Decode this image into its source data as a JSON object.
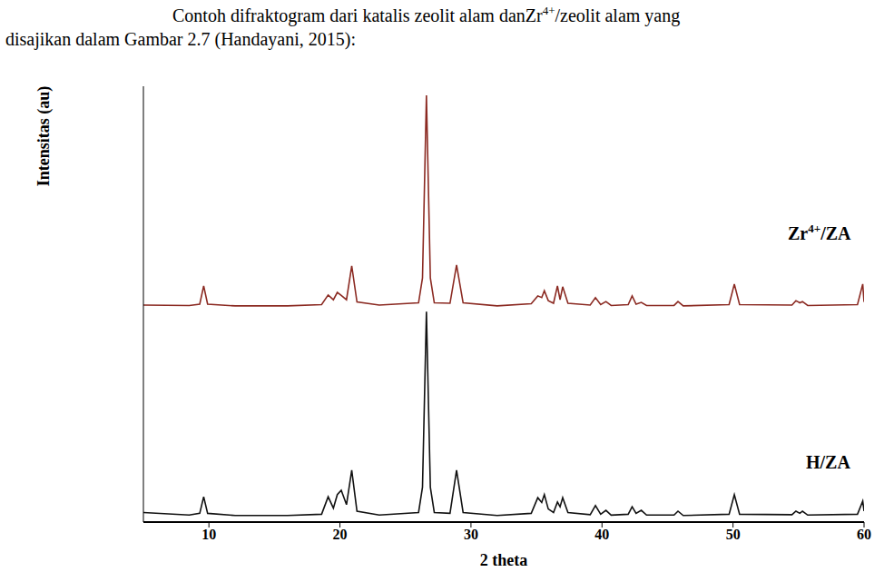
{
  "caption": [
    "Contoh difraktogram dari katalis zeolit alam danZr4+/zeolit alam yang",
    "disajikan dalam Gambar 2.7 (Handayani, 2015):"
  ],
  "chart_data": {
    "type": "line",
    "x_label": "2 theta",
    "y_label": "Intensitas (au)",
    "x": [
      5,
      8.5,
      9.3,
      9.6,
      9.9,
      12,
      16,
      18.6,
      19.1,
      19.5,
      19.8,
      20.1,
      20.5,
      20.9,
      21.3,
      23,
      26.0,
      26.3,
      26.6,
      26.9,
      27.2,
      28.4,
      28.9,
      29.4,
      32,
      34.6,
      35.1,
      35.4,
      35.6,
      35.9,
      36.3,
      36.6,
      36.8,
      37.0,
      37.4,
      39.1,
      39.5,
      39.9,
      40.3,
      40.7,
      42.0,
      42.3,
      42.6,
      43.0,
      43.4,
      45.5,
      45.8,
      46.2,
      49.7,
      50.1,
      50.5,
      54.5,
      54.8,
      55.1,
      55.3,
      55.7,
      59.5,
      59.9,
      60
    ],
    "xlim": [
      5,
      60
    ],
    "xticks": [
      10,
      20,
      30,
      40,
      50,
      60
    ],
    "ylim": [
      0,
      100
    ],
    "yticks": [],
    "tick_labels": "x",
    "grid": false,
    "series": [
      {
        "name": "Zr4+/ZA",
        "color": "#8b2a22",
        "values": [
          49.8,
          49.7,
          50.0,
          54.2,
          50.0,
          49.6,
          49.6,
          49.9,
          52.1,
          51.0,
          52.7,
          52.0,
          51.0,
          58.8,
          50.5,
          49.8,
          50.3,
          56.0,
          97.9,
          56.0,
          50.3,
          50.2,
          59.0,
          50.3,
          49.6,
          50.1,
          51.9,
          51.5,
          53.1,
          50.8,
          50.2,
          54.2,
          51.0,
          54.0,
          50.2,
          49.8,
          51.5,
          49.9,
          50.6,
          49.7,
          49.9,
          51.9,
          50.0,
          50.4,
          49.7,
          49.7,
          50.6,
          49.6,
          49.9,
          54.6,
          49.9,
          49.8,
          50.8,
          50.3,
          50.6,
          49.7,
          49.9,
          54.6,
          50.5
        ]
      },
      {
        "name": "H/ZA",
        "color": "#111111",
        "values": [
          2.2,
          1.6,
          2.0,
          5.8,
          2.0,
          1.5,
          1.5,
          1.8,
          5.8,
          3.2,
          6.3,
          7.3,
          4.0,
          11.9,
          2.5,
          1.6,
          2.2,
          8.0,
          48.3,
          8.0,
          2.2,
          2.0,
          11.9,
          2.2,
          1.5,
          2.0,
          5.6,
          4.5,
          6.3,
          3.0,
          2.2,
          4.6,
          3.5,
          5.6,
          2.2,
          1.7,
          3.8,
          1.8,
          2.7,
          1.6,
          1.8,
          3.5,
          2.0,
          2.7,
          1.6,
          1.6,
          2.5,
          1.5,
          1.8,
          6.3,
          1.8,
          1.7,
          2.5,
          2.0,
          2.5,
          1.6,
          1.8,
          4.8,
          2.5
        ]
      }
    ]
  }
}
